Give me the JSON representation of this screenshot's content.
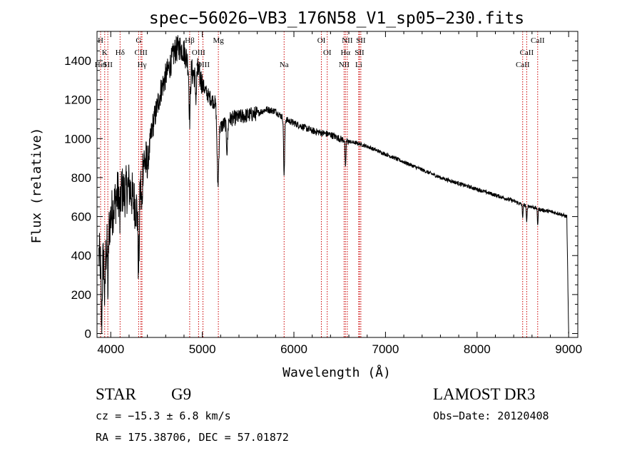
{
  "chart_data": {
    "type": "line",
    "title": "spec−56026−VB3_176N58_V1_sp05−230.fits",
    "xlabel": "Wavelength (Å)",
    "ylabel": "Flux (relative)",
    "xlim": [
      3850,
      9100
    ],
    "ylim": [
      -20,
      1550
    ],
    "x_ticks": [
      4000,
      5000,
      6000,
      7000,
      8000,
      9000
    ],
    "x_tick_labels": [
      "4000",
      "5000",
      "6000",
      "7000",
      "8000",
      "9000"
    ],
    "y_ticks": [
      0,
      200,
      400,
      600,
      800,
      1000,
      1200,
      1400
    ],
    "y_tick_labels": [
      "0",
      "200",
      "400",
      "600",
      "800",
      "1000",
      "1200",
      "1400"
    ],
    "spectrum_anchors": {
      "x": [
        3870,
        3900,
        3950,
        4000,
        4050,
        4100,
        4150,
        4200,
        4250,
        4300,
        4350,
        4400,
        4450,
        4500,
        4550,
        4600,
        4650,
        4700,
        4750,
        4800,
        4850,
        4900,
        4950,
        5000,
        5050,
        5100,
        5150,
        5200,
        5250,
        5300,
        5400,
        5500,
        5600,
        5700,
        5800,
        5900,
        6000,
        6100,
        6200,
        6300,
        6400,
        6500,
        6600,
        6700,
        6800,
        7000,
        7200,
        7400,
        7600,
        7800,
        8000,
        8200,
        8400,
        8500,
        8600,
        8700,
        8800,
        8900,
        8980,
        9000
      ],
      "y": [
        400,
        350,
        420,
        600,
        680,
        750,
        720,
        760,
        680,
        620,
        900,
        860,
        1050,
        1150,
        1250,
        1320,
        1380,
        1450,
        1470,
        1450,
        1380,
        1330,
        1350,
        1280,
        1230,
        1200,
        1180,
        1060,
        1080,
        1100,
        1110,
        1120,
        1130,
        1150,
        1140,
        1100,
        1080,
        1060,
        1040,
        1030,
        1020,
        1000,
        985,
        975,
        960,
        920,
        880,
        840,
        800,
        770,
        740,
        710,
        680,
        660,
        650,
        635,
        625,
        615,
        600,
        0
      ]
    },
    "absorption_features": [
      {
        "center": 3900,
        "depth": 300,
        "width": 8
      },
      {
        "center": 3935,
        "depth": 260,
        "width": 6
      },
      {
        "center": 3970,
        "depth": 280,
        "width": 6
      },
      {
        "center": 4100,
        "depth": 180,
        "width": 8
      },
      {
        "center": 4305,
        "depth": 300,
        "width": 10
      },
      {
        "center": 4340,
        "depth": 220,
        "width": 8
      },
      {
        "center": 4862,
        "depth": 260,
        "width": 10
      },
      {
        "center": 4930,
        "depth": 120,
        "width": 10
      },
      {
        "center": 5170,
        "depth": 360,
        "width": 14
      },
      {
        "center": 5270,
        "depth": 150,
        "width": 10
      },
      {
        "center": 5893,
        "depth": 300,
        "width": 8
      },
      {
        "center": 6563,
        "depth": 150,
        "width": 6
      },
      {
        "center": 8498,
        "depth": 60,
        "width": 6
      },
      {
        "center": 8542,
        "depth": 90,
        "width": 6
      },
      {
        "center": 8662,
        "depth": 80,
        "width": 6
      }
    ],
    "spectral_lines": [
      {
        "label": "H",
        "x": 3889,
        "row": 0
      },
      {
        "label": "K",
        "x": 3934,
        "row": 1
      },
      {
        "label": "HeI",
        "x": 3889,
        "row": 2
      },
      {
        "label": "SII",
        "x": 3968,
        "row": 2
      },
      {
        "label": "Hδ",
        "x": 4102,
        "row": 1
      },
      {
        "label": "G",
        "x": 4305,
        "row": 0
      },
      {
        "label": "CIII",
        "x": 4330,
        "row": 1
      },
      {
        "label": "Hγ",
        "x": 4341,
        "row": 2
      },
      {
        "label": "Hβ",
        "x": 4862,
        "row": 0
      },
      {
        "label": "OIII",
        "x": 4959,
        "row": 1
      },
      {
        "label": "OIII",
        "x": 5007,
        "row": 2
      },
      {
        "label": "Mg",
        "x": 5175,
        "row": 0
      },
      {
        "label": "Na",
        "x": 5893,
        "row": 2
      },
      {
        "label": "OI",
        "x": 6300,
        "row": 0
      },
      {
        "label": "OI",
        "x": 6364,
        "row": 1
      },
      {
        "label": "NII",
        "x": 6548,
        "row": 2
      },
      {
        "label": "Hα",
        "x": 6563,
        "row": 1
      },
      {
        "label": "NII",
        "x": 6583,
        "row": 0
      },
      {
        "label": "SII",
        "x": 6716,
        "row": 1
      },
      {
        "label": "SII",
        "x": 6731,
        "row": 0
      },
      {
        "label": "Li",
        "x": 6708,
        "row": 2
      },
      {
        "label": "CaII",
        "x": 8498,
        "row": 2
      },
      {
        "label": "CaII",
        "x": 8542,
        "row": 1
      },
      {
        "label": "CaII",
        "x": 8662,
        "row": 0
      }
    ]
  },
  "info": {
    "class_label": "STAR",
    "subclass": "G9",
    "survey": "LAMOST DR3",
    "redshift": "cz = −15.3 ± 6.8 km/s",
    "obs_date": "Obs−Date: 20120408",
    "coords": "RA = 175.38706, DEC =  57.01872"
  },
  "colors": {
    "line_marker": "#cc0000",
    "spectrum": "#000000",
    "frame": "#000000"
  }
}
